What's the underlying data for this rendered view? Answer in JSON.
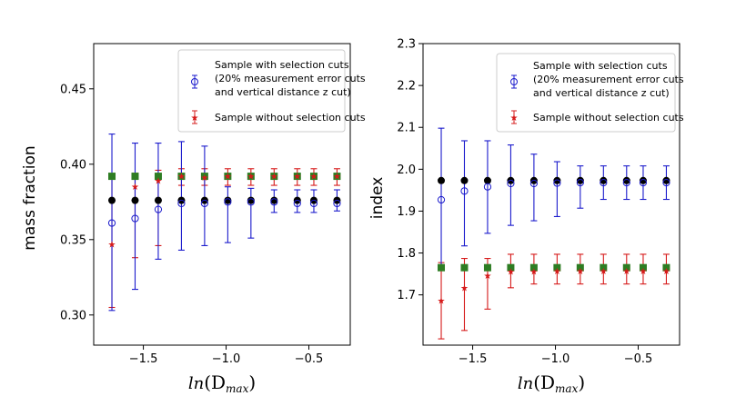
{
  "colors": {
    "with_cuts": "#1a1acc",
    "without_cuts": "#d61a1a",
    "square": "#2e7d23",
    "black_dot": "#000000"
  },
  "chart_data": [
    {
      "type": "scatter",
      "panel": "left",
      "xlabel_base": "ln",
      "xlabel_sub": "max",
      "xlabel_open": "(D",
      "xlabel_close": ")",
      "ylabel": "mass fraction",
      "xlim": [
        -1.8,
        -0.25
      ],
      "ylim": [
        0.28,
        0.48
      ],
      "xticks": [
        -1.5,
        -1.0,
        -0.5
      ],
      "xtick_labels": [
        "−1.5",
        "−1.0",
        "−0.5"
      ],
      "yticks": [
        0.3,
        0.35,
        0.4,
        0.45
      ],
      "ytick_labels": [
        "0.30",
        "0.35",
        "0.40",
        "0.45"
      ],
      "x": [
        -1.69,
        -1.55,
        -1.41,
        -1.27,
        -1.13,
        -0.99,
        -0.85,
        -0.71,
        -0.57,
        -0.47,
        -0.33
      ],
      "with_cuts": {
        "values": [
          0.361,
          0.364,
          0.37,
          0.374,
          0.374,
          0.375,
          0.375,
          0.375,
          0.374,
          0.374,
          0.374
        ],
        "lower": [
          0.303,
          0.317,
          0.337,
          0.343,
          0.346,
          0.348,
          0.351,
          0.368,
          0.368,
          0.368,
          0.369
        ],
        "upper": [
          0.42,
          0.414,
          0.414,
          0.415,
          0.412,
          0.385,
          0.384,
          0.383,
          0.383,
          0.383,
          0.383
        ]
      },
      "without_cuts": {
        "values": [
          0.347,
          0.385,
          0.389,
          0.392,
          0.391,
          0.392,
          0.392,
          0.392,
          0.392,
          0.392,
          0.392
        ],
        "lower": [
          0.305,
          0.338,
          0.346,
          0.386,
          0.386,
          0.386,
          0.386,
          0.386,
          0.386,
          0.386,
          0.386
        ],
        "upper": [
          0.393,
          0.394,
          0.396,
          0.397,
          0.397,
          0.397,
          0.397,
          0.397,
          0.397,
          0.397,
          0.397
        ]
      },
      "square_values": [
        0.392,
        0.392,
        0.392,
        0.392,
        0.392,
        0.392,
        0.392,
        0.392,
        0.392,
        0.392,
        0.392
      ],
      "dot_values": [
        0.376,
        0.376,
        0.376,
        0.376,
        0.376,
        0.376,
        0.376,
        0.376,
        0.376,
        0.376,
        0.376
      ],
      "legend": {
        "position": "top-right",
        "entry1_line1": "Sample with selection cuts",
        "entry1_line2": "(20% measurement error cuts",
        "entry1_line3": "and vertical distance z cut)",
        "entry2": "Sample without selection cuts"
      }
    },
    {
      "type": "scatter",
      "panel": "right",
      "xlabel_base": "ln",
      "xlabel_sub": "max",
      "xlabel_open": "(D",
      "xlabel_close": ")",
      "ylabel": "index",
      "xlim": [
        -1.8,
        -0.25
      ],
      "ylim": [
        1.58,
        2.3
      ],
      "xticks": [
        -1.5,
        -1.0,
        -0.5
      ],
      "xtick_labels": [
        "−1.5",
        "−1.0",
        "−0.5"
      ],
      "yticks": [
        1.7,
        1.8,
        1.9,
        2.0,
        2.1,
        2.2,
        2.3
      ],
      "ytick_labels": [
        "1.7",
        "1.8",
        "1.9",
        "2.0",
        "2.1",
        "2.2",
        "2.3"
      ],
      "x": [
        -1.69,
        -1.55,
        -1.41,
        -1.27,
        -1.13,
        -0.99,
        -0.85,
        -0.71,
        -0.57,
        -0.47,
        -0.33
      ],
      "with_cuts": {
        "values": [
          1.927,
          1.948,
          1.958,
          1.966,
          1.966,
          1.967,
          1.968,
          1.968,
          1.968,
          1.968,
          1.968
        ],
        "lower": [
          1.76,
          1.817,
          1.847,
          1.866,
          1.877,
          1.887,
          1.907,
          1.928,
          1.928,
          1.928,
          1.928
        ],
        "upper": [
          2.098,
          2.068,
          2.068,
          2.058,
          2.036,
          2.018,
          2.008,
          2.008,
          2.008,
          2.008,
          2.008
        ]
      },
      "without_cuts": {
        "values": [
          1.686,
          1.717,
          1.746,
          1.756,
          1.756,
          1.757,
          1.757,
          1.757,
          1.757,
          1.757,
          1.757
        ],
        "lower": [
          1.595,
          1.615,
          1.666,
          1.717,
          1.726,
          1.726,
          1.726,
          1.726,
          1.726,
          1.726,
          1.726
        ],
        "upper": [
          1.777,
          1.787,
          1.787,
          1.797,
          1.797,
          1.797,
          1.797,
          1.797,
          1.797,
          1.797,
          1.797
        ]
      },
      "square_values": [
        1.765,
        1.765,
        1.765,
        1.765,
        1.765,
        1.765,
        1.765,
        1.765,
        1.765,
        1.765,
        1.765
      ],
      "dot_values": [
        1.973,
        1.973,
        1.973,
        1.973,
        1.973,
        1.973,
        1.973,
        1.973,
        1.973,
        1.973,
        1.973
      ],
      "legend": {
        "position": "top-right",
        "entry1_line1": "Sample with selection cuts",
        "entry1_line2": "(20% measurement error cuts",
        "entry1_line3": "and vertical distance z cut)",
        "entry2": "Sample without selection cuts"
      }
    }
  ]
}
